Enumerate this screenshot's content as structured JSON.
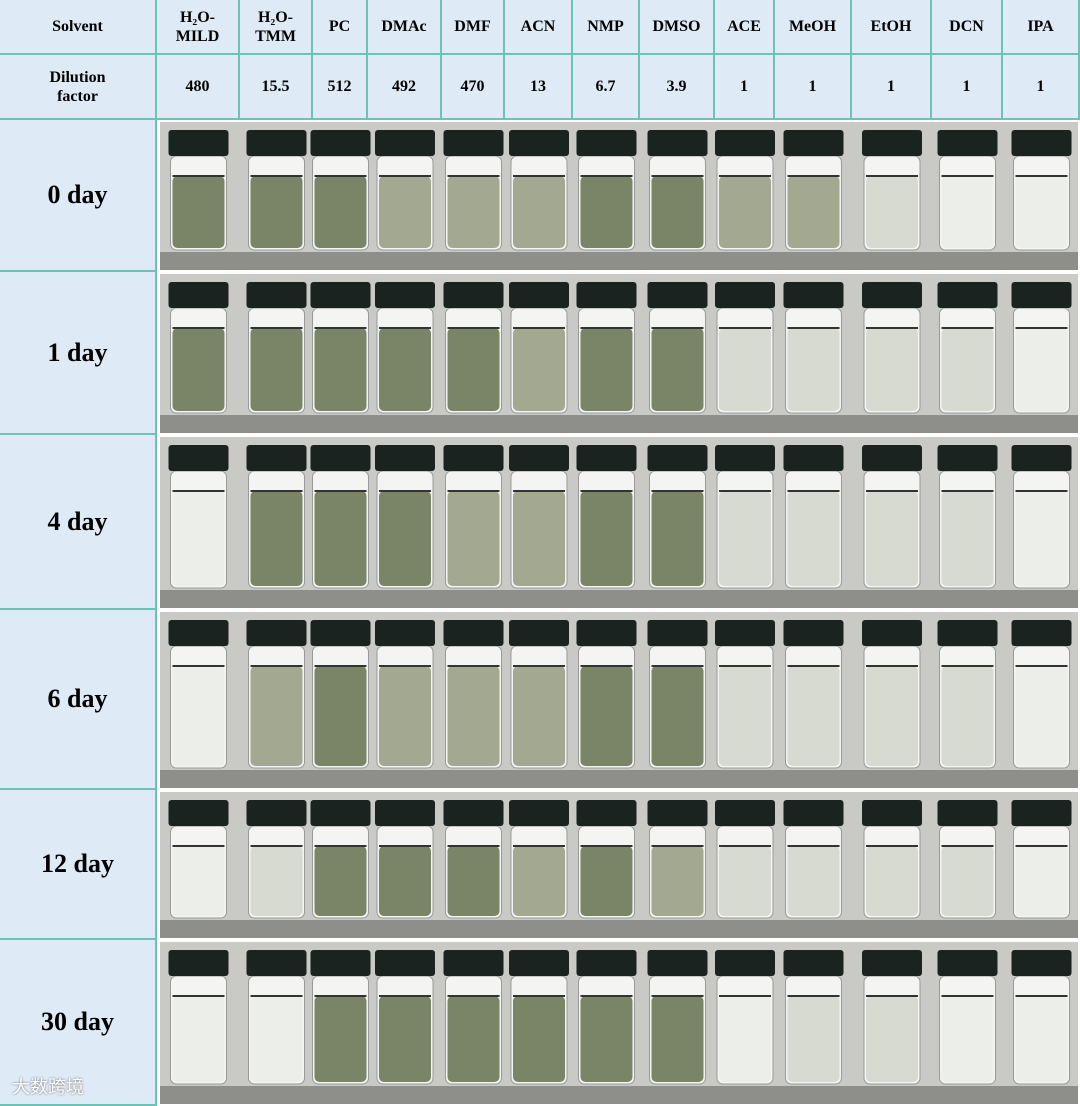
{
  "table": {
    "header": [
      "Solvent",
      "H₂O-MILD",
      "H₂O-TMM",
      "PC",
      "DMAc",
      "DMF",
      "ACN",
      "NMP",
      "DMSO",
      "ACE",
      "MeOH",
      "EtOH",
      "DCN",
      "IPA"
    ],
    "dilution": {
      "label": "Dilution factor",
      "values": [
        480,
        15.5,
        512,
        492,
        470,
        13,
        6.7,
        3.9,
        1,
        1,
        1,
        1,
        1
      ]
    },
    "rows": [
      "0 day",
      "1 day",
      "4 day",
      "6 day",
      "12 day",
      "30 day"
    ]
  },
  "watermark": "大数跨境"
}
